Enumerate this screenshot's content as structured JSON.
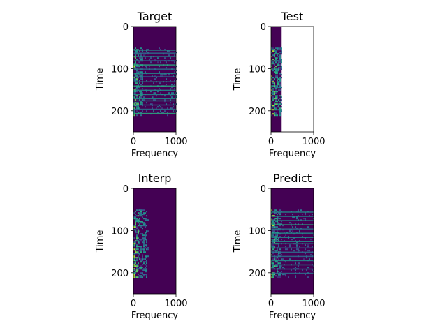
{
  "colors": {
    "background": "#440154",
    "accent_green": "#3ba87f",
    "accent_teal": "#2b8c8d",
    "accent_yellow": "#9fdc49",
    "empty": "#ffffff",
    "axis": "#000000"
  },
  "colormap": "viridis",
  "chart_data": [
    {
      "type": "heatmap",
      "title": "Target",
      "xlabel": "Frequency",
      "ylabel": "Time",
      "xlim": [
        0,
        1000
      ],
      "ylim": [
        250,
        0
      ],
      "xticks": [
        "0",
        "1000"
      ],
      "yticks": [
        "0",
        "100",
        "200"
      ],
      "data_extent": {
        "freq": [
          0,
          1000
        ],
        "time": [
          0,
          250
        ]
      },
      "active_time": [
        50,
        210
      ],
      "active_freq_max": 1000,
      "strong_freq_max": 200,
      "band_times": [
        55,
        62,
        70,
        80,
        90,
        100,
        110,
        118,
        130,
        140,
        150,
        160,
        170,
        175,
        185,
        195,
        205
      ]
    },
    {
      "type": "heatmap",
      "title": "Test",
      "xlabel": "Frequency",
      "ylabel": "Time",
      "xlim": [
        0,
        1000
      ],
      "ylim": [
        250,
        0
      ],
      "xticks": [
        "0",
        "1000"
      ],
      "yticks": [
        "0",
        "100",
        "200"
      ],
      "data_extent": {
        "freq": [
          0,
          250
        ],
        "time": [
          0,
          250
        ]
      },
      "active_time": [
        50,
        210
      ],
      "active_freq_max": 250,
      "strong_freq_max": 250,
      "band_times": []
    },
    {
      "type": "heatmap",
      "title": "Interp",
      "xlabel": "Frequency",
      "ylabel": "Time",
      "xlim": [
        0,
        1000
      ],
      "ylim": [
        250,
        0
      ],
      "xticks": [
        "0",
        "1000"
      ],
      "yticks": [
        "0",
        "100",
        "200"
      ],
      "data_extent": {
        "freq": [
          0,
          1000
        ],
        "time": [
          0,
          250
        ]
      },
      "active_time": [
        50,
        210
      ],
      "active_freq_max": 340,
      "strong_freq_max": 300,
      "band_times": []
    },
    {
      "type": "heatmap",
      "title": "Predict",
      "xlabel": "Frequency",
      "ylabel": "Time",
      "xlim": [
        0,
        1000
      ],
      "ylim": [
        250,
        0
      ],
      "xticks": [
        "0",
        "1000"
      ],
      "yticks": [
        "0",
        "100",
        "200"
      ],
      "data_extent": {
        "freq": [
          0,
          1000
        ],
        "time": [
          0,
          250
        ]
      },
      "active_time": [
        50,
        210
      ],
      "active_freq_max": 1000,
      "strong_freq_max": 200,
      "band_times": [
        55,
        65,
        75,
        85,
        95,
        105,
        115,
        125,
        130,
        140,
        150,
        160,
        170,
        180,
        190,
        200
      ]
    }
  ]
}
